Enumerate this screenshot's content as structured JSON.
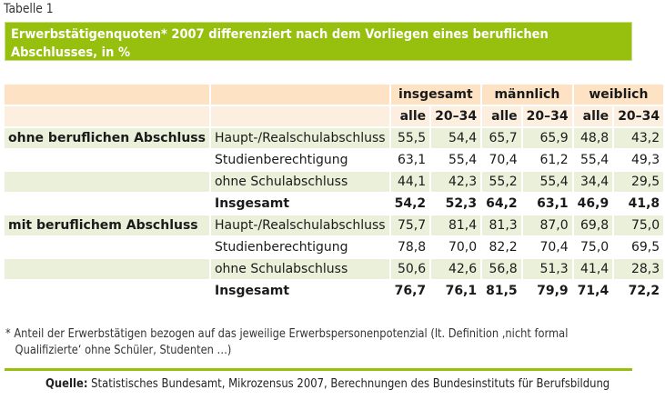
{
  "label": "Tabelle 1",
  "title": "Erwerbstätigenquoten* 2007 differenziert nach dem Vorliegen eines beruflichen Abschlusses, in %",
  "title_line1": "Erwerbstätigenquoten* 2007 differenziert nach dem Vorliegen eines beruflichen",
  "title_line2": "Abschlusses, in %",
  "groups": [
    "insgesamt",
    "männlich",
    "weiblich"
  ],
  "subheaders": [
    "alle",
    "20–34",
    "alle",
    "20–34",
    "alle",
    "20–34"
  ],
  "rows": [
    {
      "group": "ohne beruflichen Abschluss",
      "cat": "Haupt-/Realschulabschluss",
      "values": [
        "55,5",
        "54,4",
        "65,7",
        "65,9",
        "48,8",
        "43,2"
      ]
    },
    {
      "group": "",
      "cat": "Studienberechtigung",
      "values": [
        "63,1",
        "55,4",
        "70,4",
        "61,2",
        "55,4",
        "49,3"
      ]
    },
    {
      "group": "",
      "cat": "ohne Schulabschluss",
      "values": [
        "44,1",
        "42,3",
        "55,2",
        "55,4",
        "34,4",
        "29,5"
      ]
    },
    {
      "group": "",
      "cat": "Insgesamt",
      "values": [
        "54,2",
        "52,3",
        "64,2",
        "63,1",
        "46,9",
        "41,8"
      ]
    },
    {
      "group": "mit beruflichem Abschluss",
      "cat": "Haupt-/Realschulabschluss",
      "values": [
        "75,7",
        "81,4",
        "81,3",
        "87,0",
        "69,8",
        "75,0"
      ]
    },
    {
      "group": "",
      "cat": "Studienberechtigung",
      "values": [
        "78,8",
        "70,0",
        "82,2",
        "70,4",
        "75,0",
        "69,5"
      ]
    },
    {
      "group": "",
      "cat": "ohne Schulabschluss",
      "values": [
        "50,6",
        "42,6",
        "56,8",
        "51,3",
        "41,4",
        "28,3"
      ]
    },
    {
      "group": "",
      "cat": "Insgesamt",
      "values": [
        "76,7",
        "76,1",
        "81,5",
        "79,9",
        "71,4",
        "72,2"
      ]
    }
  ],
  "footnote_line1": "* Anteil der Erwerbstätigen bezogen auf das jeweilige Erwerbspersonenpotenzial (lt. Definition ‚nicht formal",
  "footnote_line2": "Qualifizierte‘ ohne Schüler, Studenten …)",
  "source_label": "Quelle:",
  "source_text": " Statistisches Bundesamt, Mikrozensus 2007, Berechnungen des Bundesinstituts für Berufsbildung"
}
